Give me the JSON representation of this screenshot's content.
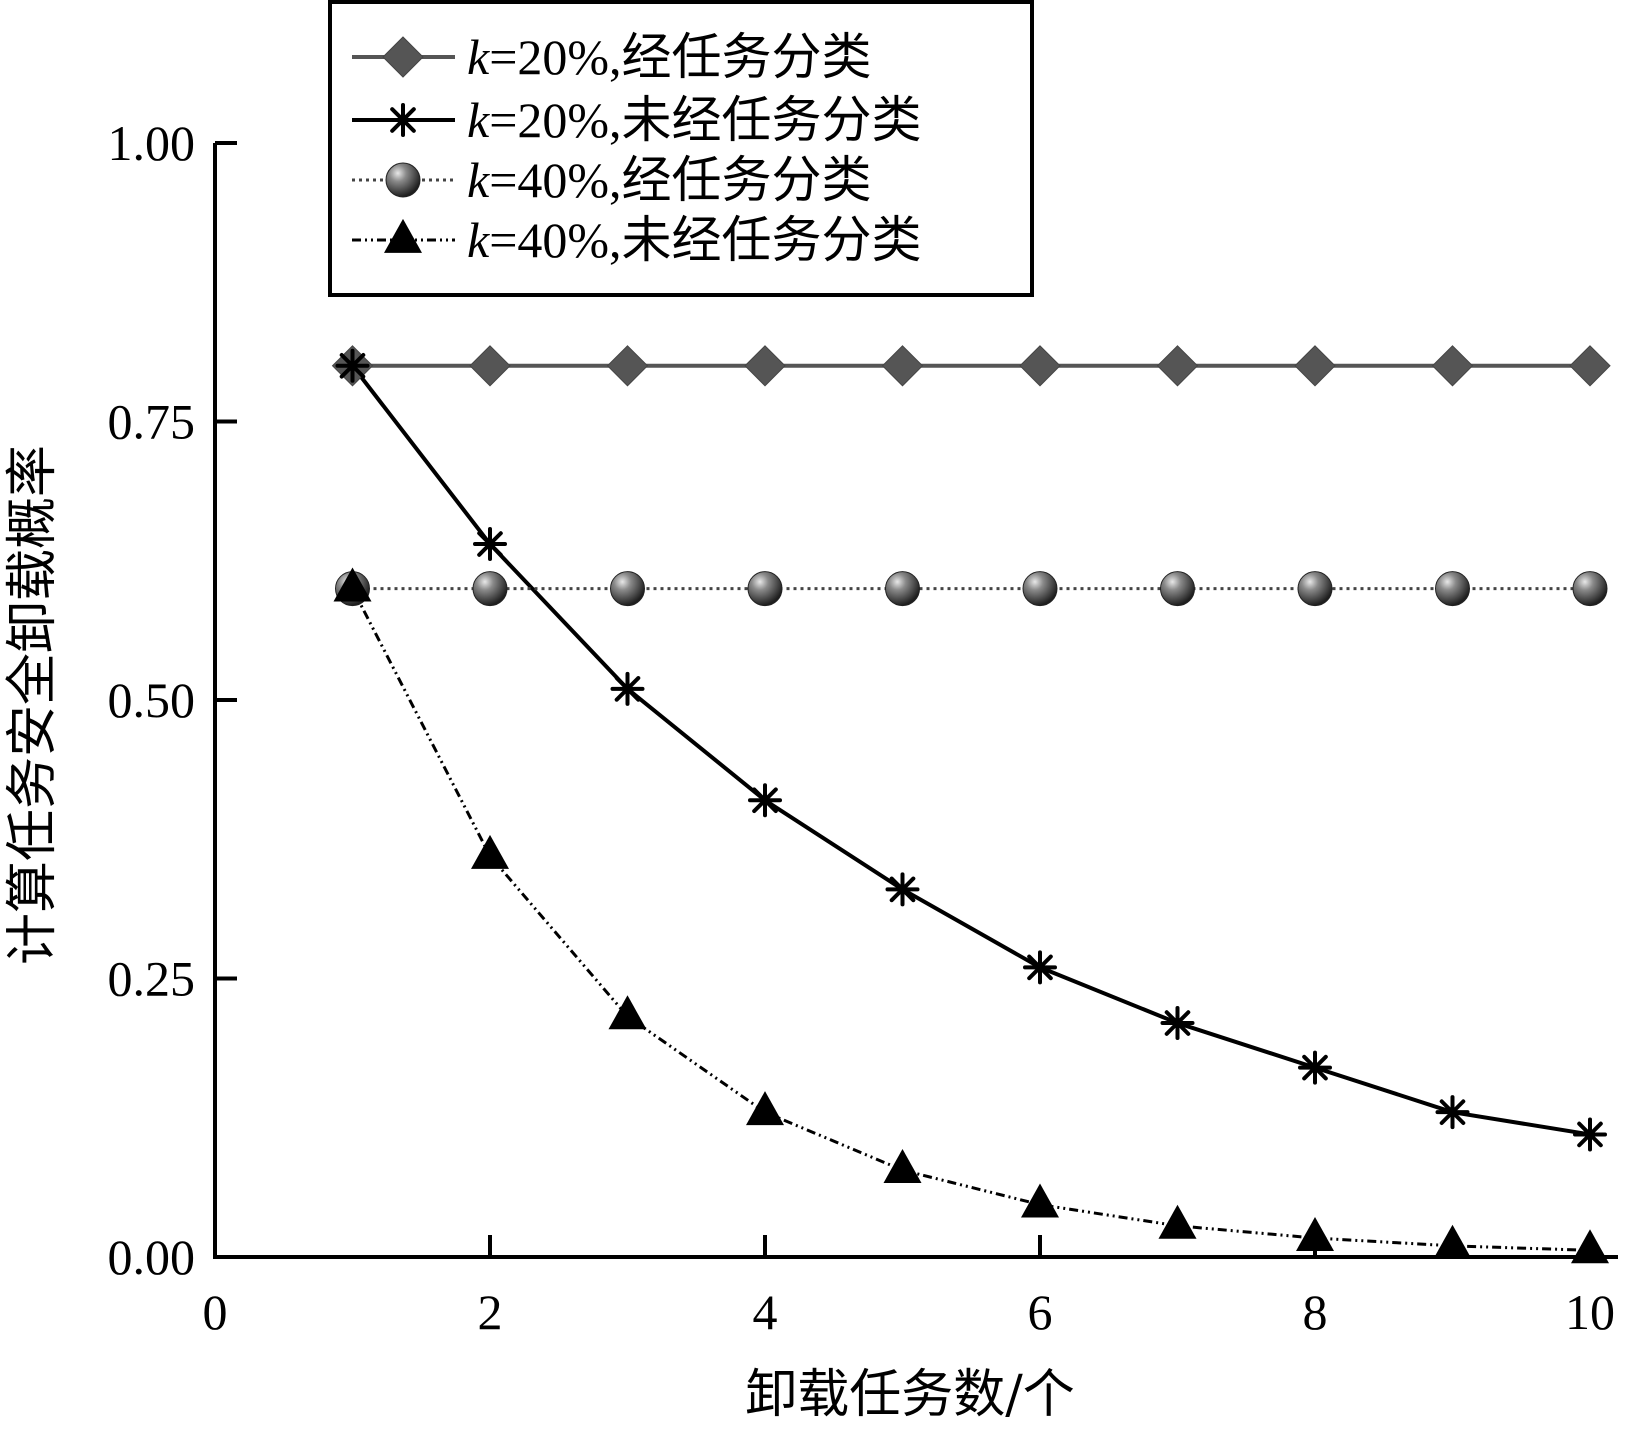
{
  "chart_data": {
    "type": "line",
    "title": "",
    "xlabel": "卸载任务数/个",
    "ylabel": "计算任务安全卸载概率",
    "xlim": [
      0,
      10
    ],
    "ylim": [
      0,
      1
    ],
    "x_ticks": [
      "0",
      "2",
      "4",
      "6",
      "8",
      "10"
    ],
    "y_ticks": [
      "0.00",
      "0.25",
      "0.50",
      "0.75",
      "1.00"
    ],
    "grid": false,
    "legend_position": "top-center",
    "x": [
      1,
      2,
      3,
      4,
      5,
      6,
      7,
      8,
      9,
      10
    ],
    "series": [
      {
        "name": "k=20%,经任务分类",
        "legend_k": "k",
        "legend_rest": "=20%,经任务分类",
        "marker": "diamond",
        "line_style": "solid",
        "color": "#555555",
        "values": [
          0.8,
          0.8,
          0.8,
          0.8,
          0.8,
          0.8,
          0.8,
          0.8,
          0.8,
          0.8
        ]
      },
      {
        "name": "k=20%,未经任务分类",
        "legend_k": "k",
        "legend_rest": "=20%,未经任务分类",
        "marker": "asterisk",
        "line_style": "solid",
        "color": "#000000",
        "values": [
          0.8,
          0.64,
          0.51,
          0.41,
          0.33,
          0.26,
          0.21,
          0.17,
          0.13,
          0.11
        ]
      },
      {
        "name": "k=40%,经任务分类",
        "legend_k": "k",
        "legend_rest": "=40%,经任务分类",
        "marker": "sphere",
        "line_style": "dotted",
        "color": "#444444",
        "values": [
          0.6,
          0.6,
          0.6,
          0.6,
          0.6,
          0.6,
          0.6,
          0.6,
          0.6,
          0.6
        ]
      },
      {
        "name": "k=40%,未经任务分类",
        "legend_k": "k",
        "legend_rest": "=40%,未经任务分类",
        "marker": "triangle",
        "line_style": "dashdot",
        "color": "#000000",
        "values": [
          0.6,
          0.36,
          0.216,
          0.13,
          0.078,
          0.047,
          0.028,
          0.017,
          0.01,
          0.006
        ]
      }
    ]
  }
}
